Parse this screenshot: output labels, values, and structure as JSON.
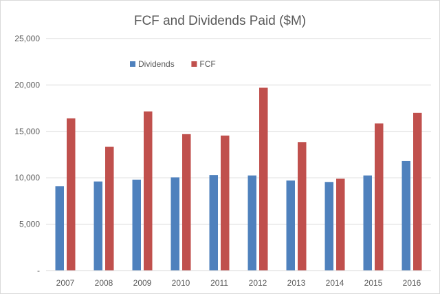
{
  "chart_data": {
    "type": "bar",
    "title": "FCF and Dividends Paid ($M)",
    "xlabel": "",
    "ylabel": "",
    "categories": [
      "2007",
      "2008",
      "2009",
      "2010",
      "2011",
      "2012",
      "2013",
      "2014",
      "2015",
      "2016"
    ],
    "series": [
      {
        "name": "Dividends",
        "color": "#4f81bd",
        "values": [
          9100,
          9600,
          9800,
          10050,
          10300,
          10250,
          9700,
          9550,
          10250,
          11800
        ]
      },
      {
        "name": "FCF",
        "color": "#c0504d",
        "values": [
          16400,
          13350,
          17150,
          14700,
          14550,
          19700,
          13850,
          9900,
          15850,
          17000
        ]
      }
    ],
    "ylim": [
      0,
      25000
    ],
    "yticks": [
      0,
      5000,
      10000,
      15000,
      20000,
      25000
    ],
    "ytick_labels": [
      "-",
      "5,000",
      "10,000",
      "15,000",
      "20,000",
      "25,000"
    ],
    "grid": true,
    "legend_position": "top-left"
  }
}
